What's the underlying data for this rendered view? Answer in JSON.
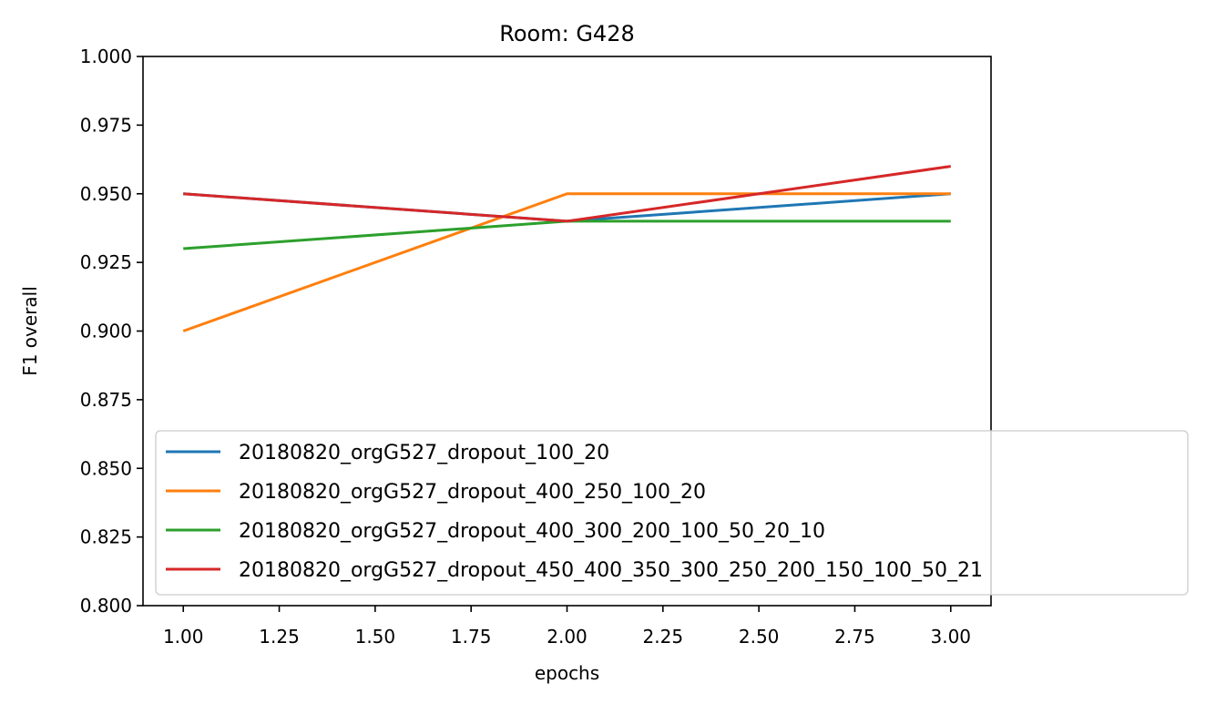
{
  "chart_data": {
    "type": "line",
    "title": "Room: G428",
    "xlabel": "epochs",
    "ylabel": "F1 overall",
    "xlim": [
      0.895,
      3.105
    ],
    "ylim": [
      0.8,
      1.0
    ],
    "xticks": [
      "1.00",
      "1.25",
      "1.50",
      "1.75",
      "2.00",
      "2.25",
      "2.50",
      "2.75",
      "3.00"
    ],
    "yticks": [
      "0.800",
      "0.825",
      "0.850",
      "0.875",
      "0.900",
      "0.925",
      "0.950",
      "0.975",
      "1.000"
    ],
    "x": [
      1,
      2,
      3
    ],
    "series": [
      {
        "name": "20180820_orgG527_dropout_100_20",
        "color": "#1f77b4",
        "values": [
          0.95,
          0.94,
          0.95
        ]
      },
      {
        "name": "20180820_orgG527_dropout_400_250_100_20",
        "color": "#ff7f0e",
        "values": [
          0.9,
          0.95,
          0.95
        ]
      },
      {
        "name": "20180820_orgG527_dropout_400_300_200_100_50_20_10",
        "color": "#2ca02c",
        "values": [
          0.93,
          0.94,
          0.94
        ]
      },
      {
        "name": "20180820_orgG527_dropout_450_400_350_300_250_200_150_100_50_21",
        "color": "#d62728",
        "values": [
          0.95,
          0.94,
          0.96
        ]
      }
    ],
    "grid": false,
    "legend_position": "lower-left"
  }
}
